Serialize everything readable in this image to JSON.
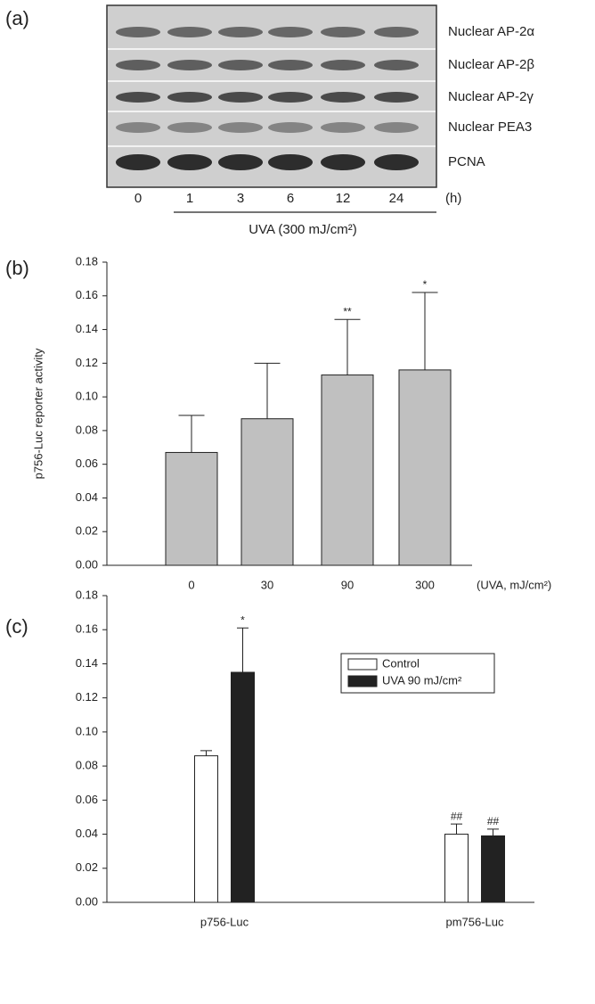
{
  "blot": {
    "panel_label": "(a)",
    "rows": [
      "Nuclear AP-2α",
      "Nuclear AP-2β",
      "Nuclear AP-2γ",
      "Nuclear PEA3",
      "PCNA"
    ],
    "lanes": [
      "0",
      "1",
      "3",
      "6",
      "12",
      "24"
    ],
    "unit": "(h)",
    "treatment": "UVA (300 mJ/cm²)"
  },
  "chart_data": [
    {
      "type": "bar",
      "panel_label": "(b)",
      "y_label": "p756-Luc reporter activity",
      "x_label": "(UVA, mJ/cm²)",
      "categories": [
        "0",
        "30",
        "90",
        "300"
      ],
      "values": [
        0.067,
        0.087,
        0.113,
        0.116
      ],
      "errors": [
        0.022,
        0.033,
        0.033,
        0.046
      ],
      "significance": [
        null,
        null,
        "**",
        "*"
      ],
      "color": "#c0c0c0",
      "ylim": [
        0,
        0.18
      ],
      "yticks": [
        {
          "value": 0,
          "label": "0.00"
        },
        {
          "value": 0.02,
          "label": "0.02"
        },
        {
          "value": 0.04,
          "label": "0.04"
        },
        {
          "value": 0.06,
          "label": "0.06"
        },
        {
          "value": 0.08,
          "label": "0.08"
        },
        {
          "value": 0.1,
          "label": "0.10"
        },
        {
          "value": 0.12,
          "label": "0.12"
        },
        {
          "value": 0.14,
          "label": "0.14"
        },
        {
          "value": 0.16,
          "label": "0.16"
        },
        {
          "value": 0.18,
          "label": "0.18"
        }
      ]
    },
    {
      "type": "bar",
      "panel_label": "(c)",
      "categories": [
        "p756-Luc",
        "pm756-Luc"
      ],
      "series": [
        {
          "name": "Control",
          "color": "#ffffff",
          "values": [
            0.086,
            0.04
          ],
          "errors": [
            0.003,
            0.006
          ],
          "significance": [
            null,
            "##"
          ]
        },
        {
          "name": "UVA 90 mJ/cm²",
          "color": "#222222",
          "values": [
            0.135,
            0.039
          ],
          "errors": [
            0.026,
            0.004
          ],
          "significance": [
            "*",
            "##"
          ]
        }
      ],
      "ylim": [
        0,
        0.18
      ],
      "yticks": [
        {
          "value": 0,
          "label": "0.00"
        },
        {
          "value": 0.02,
          "label": "0.02"
        },
        {
          "value": 0.04,
          "label": "0.04"
        },
        {
          "value": 0.06,
          "label": "0.06"
        },
        {
          "value": 0.08,
          "label": "0.08"
        },
        {
          "value": 0.1,
          "label": "0.10"
        },
        {
          "value": 0.12,
          "label": "0.12"
        },
        {
          "value": 0.14,
          "label": "0.14"
        },
        {
          "value": 0.16,
          "label": "0.16"
        },
        {
          "value": 0.18,
          "label": "0.18"
        }
      ]
    }
  ]
}
